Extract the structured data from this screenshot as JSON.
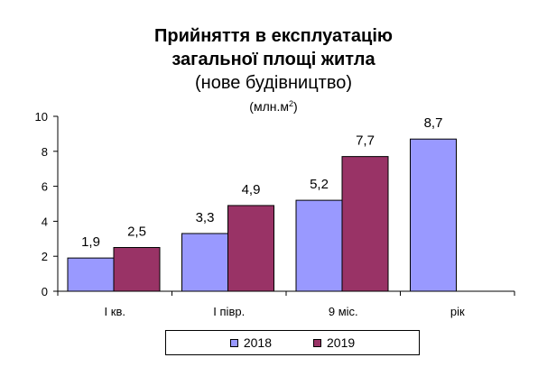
{
  "chart_data": {
    "type": "bar",
    "title_lines": [
      "Прийняття в експлуатацію",
      "загальної площі житла",
      "(нове будівництво)"
    ],
    "unit": "(млн.м",
    "unit_sup": "2",
    "unit_close": ")",
    "categories": [
      "І кв.",
      "І півр.",
      "9 міс.",
      "рік"
    ],
    "series": [
      {
        "name": "2018",
        "values": [
          1.9,
          3.3,
          5.2,
          8.7
        ],
        "labels": [
          "1,9",
          "3,3",
          "5,2",
          "8,7"
        ],
        "color": "#9999ff"
      },
      {
        "name": "2019",
        "values": [
          2.5,
          4.9,
          7.7,
          null
        ],
        "labels": [
          "2,5",
          "4,9",
          "7,7",
          null
        ],
        "color": "#993366"
      }
    ],
    "ylim": [
      0,
      10
    ],
    "yticks": [
      0,
      2,
      4,
      6,
      8,
      10
    ],
    "grid": false,
    "legend_position": "bottom"
  }
}
